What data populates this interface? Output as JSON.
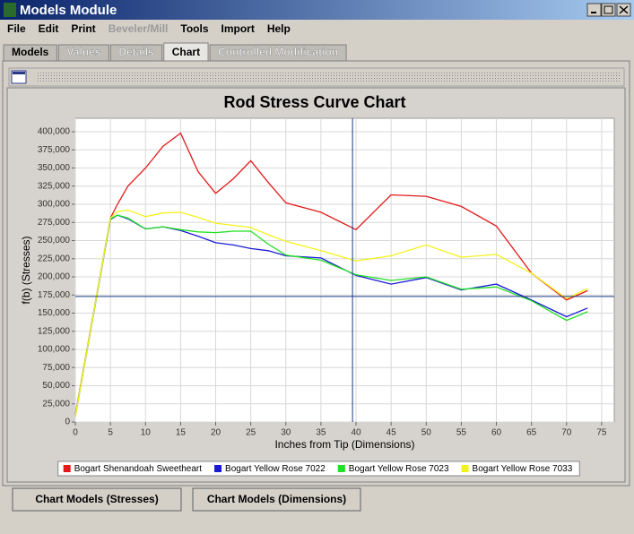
{
  "window": {
    "title": "Models Module"
  },
  "menu": [
    {
      "label": "File",
      "enabled": true
    },
    {
      "label": "Edit",
      "enabled": true
    },
    {
      "label": "Print",
      "enabled": true
    },
    {
      "label": "Beveler/Mill",
      "enabled": false
    },
    {
      "label": "Tools",
      "enabled": true
    },
    {
      "label": "Import",
      "enabled": true
    },
    {
      "label": "Help",
      "enabled": true
    }
  ],
  "tabs": [
    {
      "label": "Models",
      "enabled": true,
      "selected": false
    },
    {
      "label": "Values",
      "enabled": false,
      "selected": false
    },
    {
      "label": "Details",
      "enabled": false,
      "selected": false
    },
    {
      "label": "Chart",
      "enabled": true,
      "selected": true
    },
    {
      "label": "Controlled Modification",
      "enabled": false,
      "selected": false
    }
  ],
  "buttons": [
    "Chart Models (Stresses)",
    "Chart Models (Dimensions)"
  ],
  "chart_data": {
    "type": "line",
    "title": "Rod Stress Curve Chart",
    "x_label": "Inches from Tip (Dimensions)",
    "y_label": "f(b) (Stresses)",
    "x": [
      0,
      5,
      6,
      7.5,
      10,
      12.5,
      15,
      17.5,
      20,
      22.5,
      25,
      27.5,
      30,
      35,
      40,
      45,
      50,
      55,
      60,
      65,
      70,
      73
    ],
    "series": [
      {
        "name": "Bogart Shenandoah Sweetheart",
        "color": "#e31a1a",
        "values": [
          10000,
          281000,
          300000,
          325000,
          350000,
          380000,
          398000,
          345000,
          315000,
          335000,
          360000,
          330000,
          302000,
          289000,
          265000,
          313000,
          311000,
          297000,
          270000,
          205000,
          168000,
          181000
        ]
      },
      {
        "name": "Bogart Yellow Rose 7022",
        "color": "#1a1ad6",
        "values": [
          8000,
          279000,
          285000,
          280000,
          266000,
          269000,
          264000,
          256000,
          247000,
          244000,
          239000,
          236000,
          229000,
          226000,
          202000,
          190000,
          199000,
          182000,
          190000,
          168000,
          145000,
          157000
        ]
      },
      {
        "name": "Bogart Yellow Rose 7023",
        "color": "#22e022",
        "values": [
          8000,
          280000,
          285000,
          281000,
          266000,
          269000,
          265000,
          262000,
          261000,
          263000,
          263000,
          245000,
          230000,
          223000,
          203000,
          195000,
          200000,
          183000,
          186000,
          167000,
          140000,
          152000
        ]
      },
      {
        "name": "Bogart Yellow Rose 7033",
        "color": "#f2f21a",
        "values": [
          8000,
          281000,
          290000,
          292000,
          283000,
          288000,
          289000,
          282000,
          274000,
          271000,
          268000,
          258000,
          249000,
          236000,
          222000,
          229000,
          244000,
          227000,
          231000,
          205000,
          170000,
          184000
        ]
      }
    ],
    "xlim": [
      0,
      76.8
    ],
    "ylim": [
      0,
      418500
    ],
    "xticks": [
      0,
      5,
      10,
      15,
      20,
      25,
      30,
      35,
      40,
      45,
      50,
      55,
      60,
      65,
      70,
      75
    ],
    "yticks": [
      0,
      {
        "value": 25000,
        "label": "25,000"
      },
      {
        "value": 50000,
        "label": "50,000"
      },
      {
        "value": 75000,
        "label": "75,000"
      },
      {
        "value": 100000,
        "label": "100,000"
      },
      {
        "value": 125000,
        "label": "125,000"
      },
      {
        "value": 150000,
        "label": "150,000"
      },
      {
        "value": 175000,
        "label": "175,000"
      },
      {
        "value": 200000,
        "label": "200,000"
      },
      {
        "value": 225000,
        "label": "225,000"
      },
      {
        "value": 250000,
        "label": "250,000"
      },
      {
        "value": 275000,
        "label": "275,000"
      },
      {
        "value": 300000,
        "label": "300,000"
      },
      {
        "value": 325000,
        "label": "325,000"
      },
      {
        "value": 350000,
        "label": "350,000"
      },
      {
        "value": 375000,
        "label": "375,000"
      },
      {
        "value": 400000,
        "label": "400,000"
      }
    ],
    "crosshair": {
      "x": 39.5,
      "y": 173000
    },
    "grid": true,
    "legend": "bottom"
  }
}
